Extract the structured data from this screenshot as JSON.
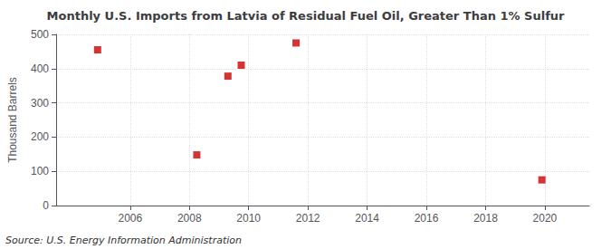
{
  "chart_data": {
    "type": "scatter",
    "title": "Monthly U.S. Imports from Latvia of Residual Fuel Oil, Greater Than 1% Sulfur",
    "ylabel": "Thousand Barrels",
    "annotation": "Source: U.S. Energy Information Administration",
    "x": [
      2004.9,
      2008.25,
      2009.3,
      2009.75,
      2011.6,
      2019.9
    ],
    "values": [
      455,
      148,
      378,
      410,
      475,
      75
    ],
    "color": "#cc0000",
    "marker": "square",
    "xlim": [
      2003.5,
      2021.5
    ],
    "ylim": [
      0,
      500
    ],
    "xticks": [
      2006,
      2008,
      2010,
      2012,
      2014,
      2016,
      2018,
      2020
    ],
    "yticks": [
      0,
      100,
      200,
      300,
      400,
      500
    ],
    "grid": true
  }
}
